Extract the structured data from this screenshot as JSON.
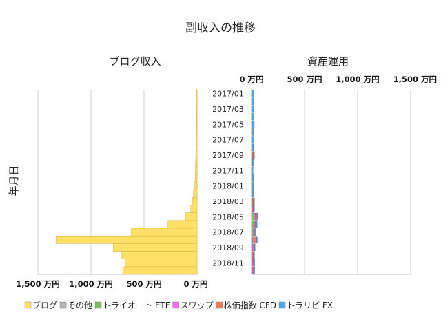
{
  "chart_data": [
    {
      "type": "bar",
      "orientation": "horizontal",
      "direction": "right-to-left",
      "title": "副収入の推移",
      "subtitle": "ブログ収入",
      "ylabel": "年月日",
      "xlim": [
        0,
        1500
      ],
      "xticks": [
        "1,500 万円",
        "1,000 万円",
        "500 万円",
        "0 万円"
      ],
      "categories": [
        "2017/01",
        "2017/02",
        "2017/03",
        "2017/04",
        "2017/05",
        "2017/06",
        "2017/07",
        "2017/08",
        "2017/09",
        "2017/10",
        "2017/11",
        "2017/12",
        "2018/01",
        "2018/02",
        "2018/03",
        "2018/04",
        "2018/05",
        "2018/06",
        "2018/07",
        "2018/08",
        "2018/09",
        "2018/10",
        "2018/11",
        "2018/12"
      ],
      "category_labels": [
        "2017/01",
        "2017/03",
        "2017/05",
        "2017/07",
        "2017/09",
        "2017/11",
        "2018/01",
        "2018/03",
        "2018/05",
        "2018/07",
        "2018/09",
        "2018/11"
      ],
      "series": [
        {
          "name": "ブログ",
          "color": "#ffe066",
          "values": [
            3,
            3,
            4,
            4,
            5,
            6,
            8,
            10,
            12,
            14,
            15,
            18,
            25,
            35,
            45,
            60,
            110,
            275,
            620,
            1330,
            790,
            710,
            680,
            700
          ]
        }
      ],
      "grid": true,
      "legend": "bottom"
    },
    {
      "type": "bar",
      "orientation": "horizontal",
      "stacked": true,
      "subtitle": "資産運用",
      "xlim": [
        0,
        1500
      ],
      "xticks": [
        "0 万円",
        "500 万円",
        "1,000 万円",
        "1,500 万円"
      ],
      "categories": [
        "2017/01",
        "2017/02",
        "2017/03",
        "2017/04",
        "2017/05",
        "2017/06",
        "2017/07",
        "2017/08",
        "2017/09",
        "2017/10",
        "2017/11",
        "2017/12",
        "2018/01",
        "2018/02",
        "2018/03",
        "2018/04",
        "2018/05",
        "2018/06",
        "2018/07",
        "2018/08",
        "2018/09",
        "2018/10",
        "2018/11",
        "2018/12"
      ],
      "series": [
        {
          "name": "その他",
          "color": "#b3b3b3",
          "values": [
            0,
            0,
            0,
            0,
            0,
            0,
            0,
            0,
            0,
            0,
            0,
            0,
            0,
            0,
            0,
            0,
            5,
            6,
            0,
            0,
            0,
            0,
            0,
            0
          ]
        },
        {
          "name": "トライオート ETF",
          "color": "#7fbf5a",
          "values": [
            0,
            0,
            0,
            0,
            0,
            0,
            0,
            0,
            0,
            0,
            0,
            0,
            0,
            0,
            0,
            5,
            18,
            22,
            15,
            12,
            10,
            8,
            8,
            8
          ]
        },
        {
          "name": "スワップ",
          "color": "#ff66ff",
          "values": [
            4,
            4,
            5,
            5,
            6,
            4,
            5,
            4,
            8,
            5,
            5,
            6,
            6,
            6,
            8,
            8,
            12,
            8,
            8,
            10,
            10,
            8,
            10,
            10
          ]
        },
        {
          "name": "株価指数 CFD",
          "color": "#f4795b",
          "values": [
            0,
            0,
            0,
            0,
            0,
            0,
            0,
            0,
            10,
            4,
            0,
            0,
            0,
            0,
            10,
            5,
            15,
            10,
            8,
            25,
            8,
            6,
            6,
            6
          ]
        },
        {
          "name": "トラリピ FX",
          "color": "#4da6e6",
          "values": [
            18,
            18,
            16,
            16,
            20,
            14,
            16,
            14,
            10,
            12,
            10,
            12,
            12,
            12,
            10,
            10,
            8,
            8,
            8,
            8,
            6,
            6,
            6,
            6
          ]
        }
      ],
      "grid": true
    }
  ]
}
